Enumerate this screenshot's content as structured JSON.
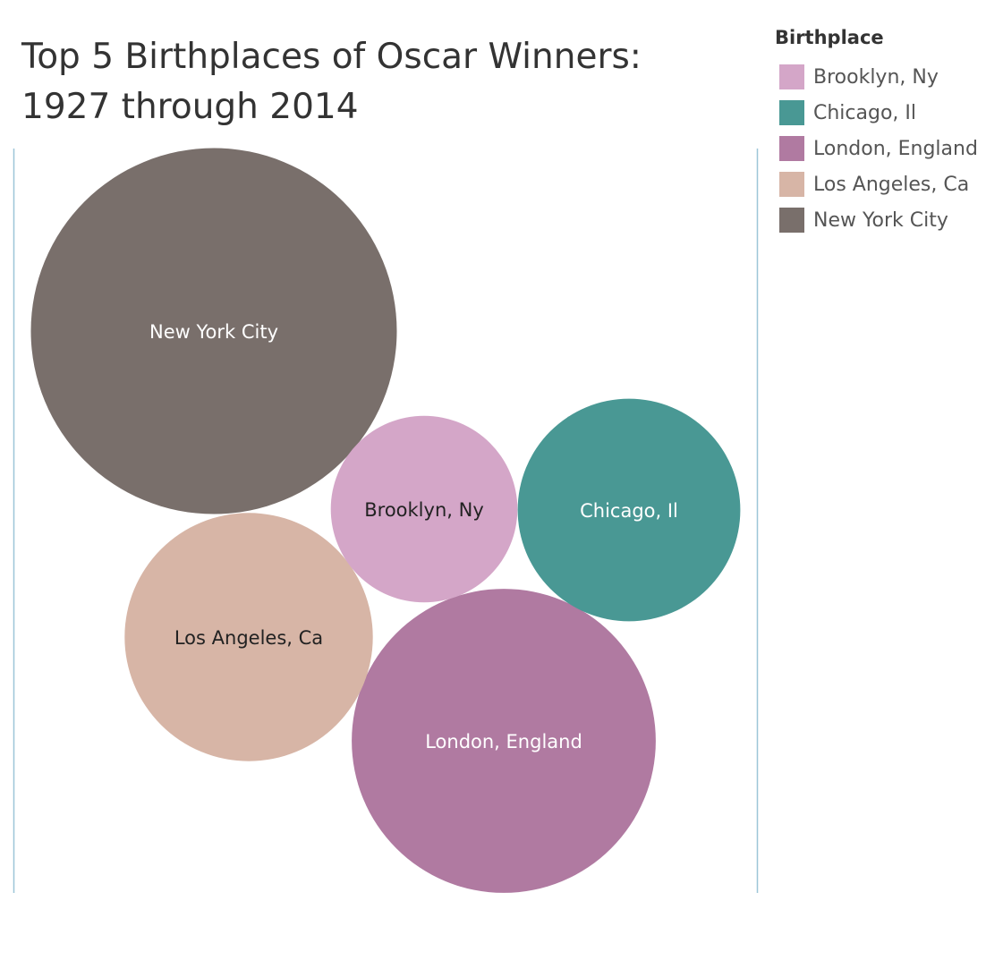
{
  "chart_data": {
    "type": "packed-bubble",
    "title": "Top 5 Birthplaces of Oscar Winners: 1927 through 2014",
    "legend": {
      "title": "Birthplace",
      "placement": "right"
    },
    "bubbles": [
      {
        "name": "New York City",
        "label": "New York City",
        "relative_size": 1.0,
        "color": "#796F6B",
        "label_color": "#ffffff"
      },
      {
        "name": "London, England",
        "label": "London, England",
        "relative_size": 0.69,
        "color": "#B07AA1",
        "label_color": "#ffffff"
      },
      {
        "name": "Los Angeles, Ca",
        "label": "Los Angeles, Ca",
        "relative_size": 0.46,
        "color": "#D7B5A6",
        "label_color": "#222222"
      },
      {
        "name": "Chicago, Il",
        "label": "Chicago, Il",
        "relative_size": 0.37,
        "color": "#499894",
        "label_color": "#ffffff"
      },
      {
        "name": "Brooklyn, Ny",
        "label": "Brooklyn, Ny",
        "relative_size": 0.26,
        "color": "#D4A6C8",
        "label_color": "#222222"
      }
    ],
    "legend_entries": [
      {
        "label": "Brooklyn, Ny",
        "color": "#D4A6C8"
      },
      {
        "label": "Chicago, Il",
        "color": "#499894"
      },
      {
        "label": "London, England",
        "color": "#B07AA1"
      },
      {
        "label": "Los Angeles, Ca",
        "color": "#D7B5A6"
      },
      {
        "label": "New York City",
        "color": "#796F6B"
      }
    ]
  }
}
